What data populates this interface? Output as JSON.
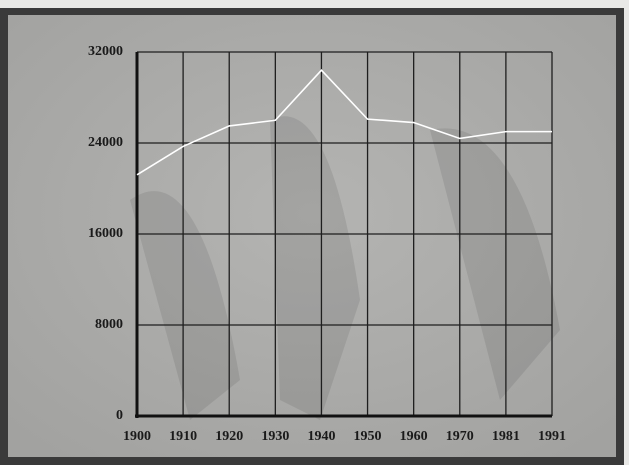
{
  "chart_data": {
    "type": "line",
    "categories": [
      "1900",
      "1910",
      "1920",
      "1930",
      "1940",
      "1950",
      "1960",
      "1970",
      "1981",
      "1991"
    ],
    "values": [
      21200,
      23700,
      25500,
      26000,
      30400,
      26100,
      25800,
      24400,
      25000,
      25000
    ],
    "color": "#ffffff",
    "ylim": [
      0,
      32000
    ],
    "yticks": [
      0,
      8000,
      16000,
      24000,
      32000
    ],
    "grid": true
  }
}
